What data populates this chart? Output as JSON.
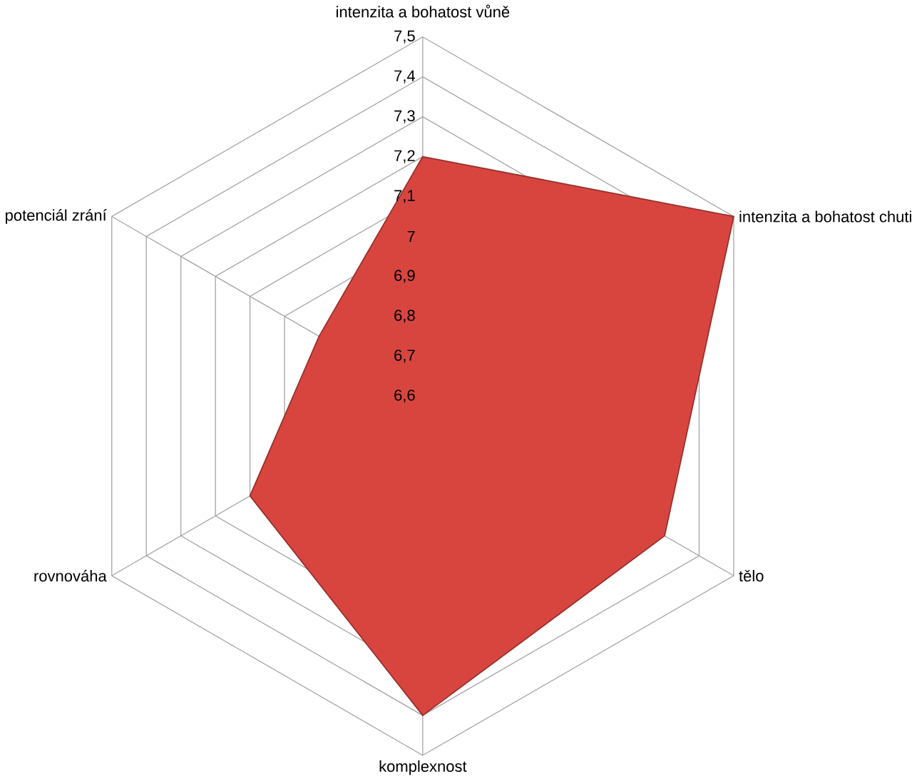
{
  "chart_data": {
    "type": "radar",
    "categories": [
      "intenzita a bohatost vůně",
      "intenzita a bohatost chuti",
      "tělo",
      "komplexnost",
      "rovnováha",
      "potenciál zrání"
    ],
    "series": [
      {
        "color": "#d8453f",
        "values": [
          7.2,
          7.5,
          7.3,
          7.4,
          7.1,
          6.9
        ]
      }
    ],
    "ylim": [
      6.6,
      7.5
    ],
    "yticks": [
      {
        "value": 6.6,
        "label": "6,6"
      },
      {
        "value": 6.7,
        "label": "6,7"
      },
      {
        "value": 6.8,
        "label": "6,8"
      },
      {
        "value": 6.9,
        "label": "6,9"
      },
      {
        "value": 7.0,
        "label": "7"
      },
      {
        "value": 7.1,
        "label": "7,1"
      },
      {
        "value": 7.2,
        "label": "7,2"
      },
      {
        "value": 7.3,
        "label": "7,3"
      },
      {
        "value": 7.4,
        "label": "7,4"
      },
      {
        "value": 7.5,
        "label": "7,5"
      }
    ],
    "grid": true
  }
}
